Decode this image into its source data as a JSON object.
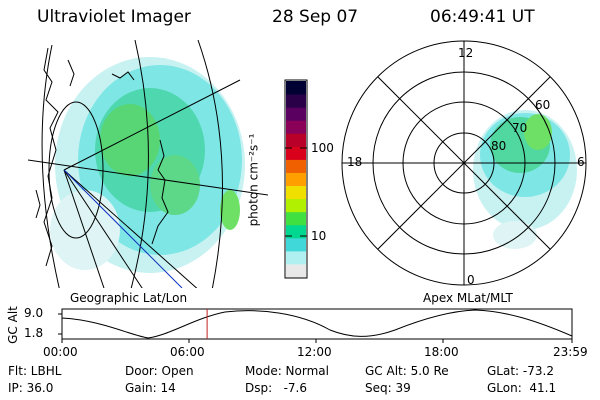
{
  "header": {
    "instrument": "Ultraviolet Imager",
    "date": "28 Sep 07",
    "time": "06:49:41 UT"
  },
  "colorbar": {
    "unit_label": "photon cm⁻²s⁻¹",
    "ticks": [
      "100",
      "10"
    ],
    "colors": [
      "#000033",
      "#2a0048",
      "#5a0060",
      "#8a0058",
      "#b80028",
      "#d8001a",
      "#f06000",
      "#ffa000",
      "#f0e000",
      "#b0f000",
      "#40e040",
      "#00d890",
      "#40d8d8",
      "#b0f0f0",
      "#e8e8e8"
    ]
  },
  "left_map": {
    "caption": "Geographic Lat/Lon"
  },
  "polar_plot": {
    "caption": "Apex MLat/MLT",
    "mlt_labels": {
      "top": "12",
      "left": "18",
      "right": "6",
      "bottom": "0"
    },
    "lat_labels": [
      "80",
      "70",
      "60"
    ]
  },
  "timeline": {
    "axis_label": "GC Alt",
    "y_ticks": [
      "9.0",
      "1.8"
    ],
    "x_ticks": [
      "00:00",
      "06:00",
      "12:00",
      "18:00",
      "23:59"
    ],
    "current_time_fraction": 0.2845
  },
  "footer": {
    "filter": "Flt: LBHL",
    "ip": "IP: 36.0",
    "door": "Door: Open",
    "gain": "Gain: 14",
    "mode": "Mode: Normal",
    "dsp": "Dsp:   -7.6",
    "gc_alt": "GC Alt: 5.0 Re",
    "seq": "Seq: 39",
    "glat": "GLat: -73.2",
    "glon": "GLon:  41.1"
  }
}
